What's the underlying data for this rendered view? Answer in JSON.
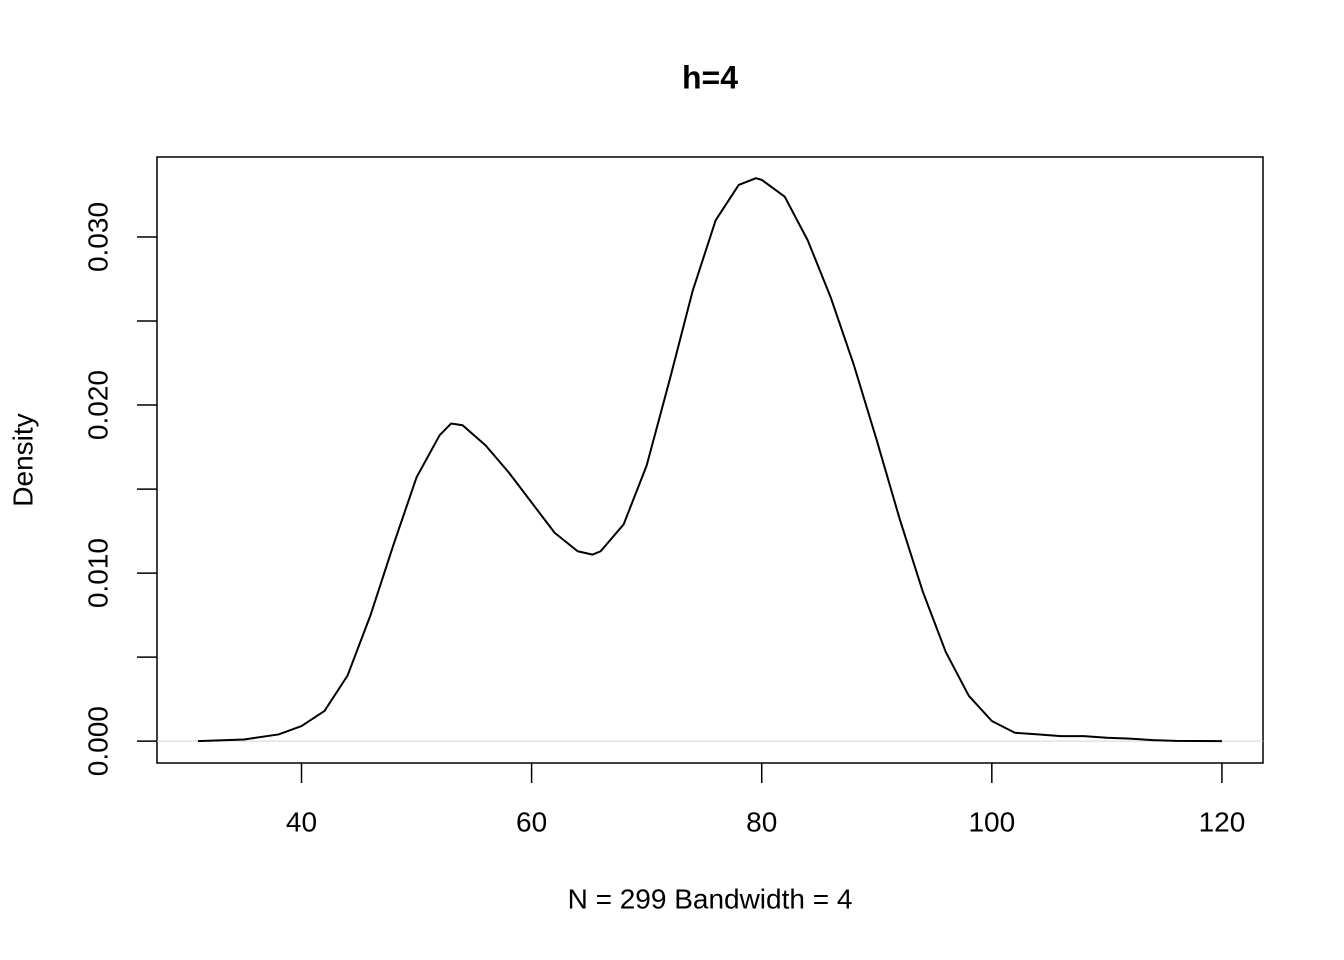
{
  "chart_data": {
    "type": "line",
    "title": "h=4",
    "x_label": "N = 299   Bandwidth = 4",
    "y_label": "Density",
    "x": [
      31,
      35,
      38,
      40,
      42,
      44,
      46,
      48,
      50,
      52,
      53,
      54,
      56,
      58,
      60,
      62,
      64,
      65.3,
      66,
      68,
      70,
      72,
      74,
      76,
      78,
      79.5,
      80,
      82,
      84,
      86,
      88,
      90,
      92,
      94,
      96,
      98,
      100,
      102,
      104,
      106,
      108,
      110,
      112,
      114,
      116,
      118,
      120
    ],
    "series": [
      {
        "name": "density",
        "color": "#000000",
        "values": [
          0,
          0.0001,
          0.0004,
          0.0009,
          0.0018,
          0.0039,
          0.0075,
          0.0117,
          0.0157,
          0.0182,
          0.0189,
          0.0188,
          0.0176,
          0.016,
          0.0142,
          0.0124,
          0.0113,
          0.0111,
          0.0113,
          0.0129,
          0.0164,
          0.0215,
          0.0268,
          0.031,
          0.0331,
          0.0335,
          0.0334,
          0.0324,
          0.0298,
          0.0264,
          0.0224,
          0.0179,
          0.0132,
          0.0089,
          0.0053,
          0.0027,
          0.0012,
          0.0005,
          0.0004,
          0.0003,
          0.0003,
          0.0002,
          0.00015,
          6e-05,
          2e-05,
          1e-05,
          0
        ]
      }
    ],
    "xlim": [
      27.44,
      123.57
    ],
    "ylim": [
      -0.0013,
      0.03476
    ],
    "xticks": [
      40,
      60,
      80,
      100,
      120
    ],
    "yticks": [
      {
        "value": 0,
        "label": "0.000"
      },
      {
        "value": 0.01,
        "label": "0.010"
      },
      {
        "value": 0.02,
        "label": "0.020"
      },
      {
        "value": 0.03,
        "label": "0.030"
      }
    ],
    "yminor_ticks": [
      0.005,
      0.015,
      0.025
    ],
    "zero_line": true,
    "zero_line_color": "#d3d3d3",
    "grid": false
  }
}
